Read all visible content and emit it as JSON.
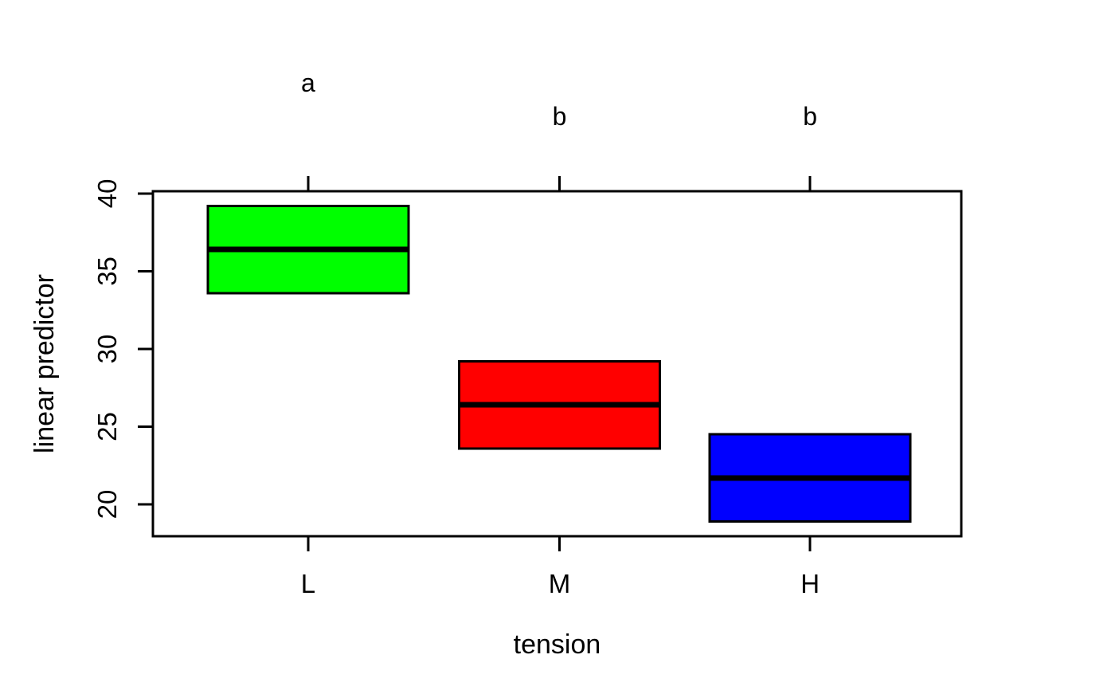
{
  "page": {
    "background": "#ffffff"
  },
  "chart_data": {
    "type": "boxplot",
    "subtype": "cld-confidence-interval-plot",
    "title": "",
    "xlabel": "tension",
    "ylabel": "linear predictor",
    "categories": [
      "L",
      "M",
      "H"
    ],
    "yticks": [
      "20",
      "25",
      "30",
      "35",
      "40"
    ],
    "ylim": [
      17.95,
      40.15
    ],
    "grid": false,
    "legend_position": "none",
    "axis_color": "#000000",
    "text_color": "#000000",
    "series": [
      {
        "category": "L",
        "letter": "a",
        "color": "#00ff00",
        "lower": 33.6,
        "median": 36.4,
        "upper": 39.2
      },
      {
        "category": "M",
        "letter": "b",
        "color": "#ff0000",
        "lower": 23.6,
        "median": 26.4,
        "upper": 29.2
      },
      {
        "category": "H",
        "letter": "b",
        "color": "#0000ff",
        "lower": 18.9,
        "median": 21.7,
        "upper": 24.5
      }
    ]
  }
}
